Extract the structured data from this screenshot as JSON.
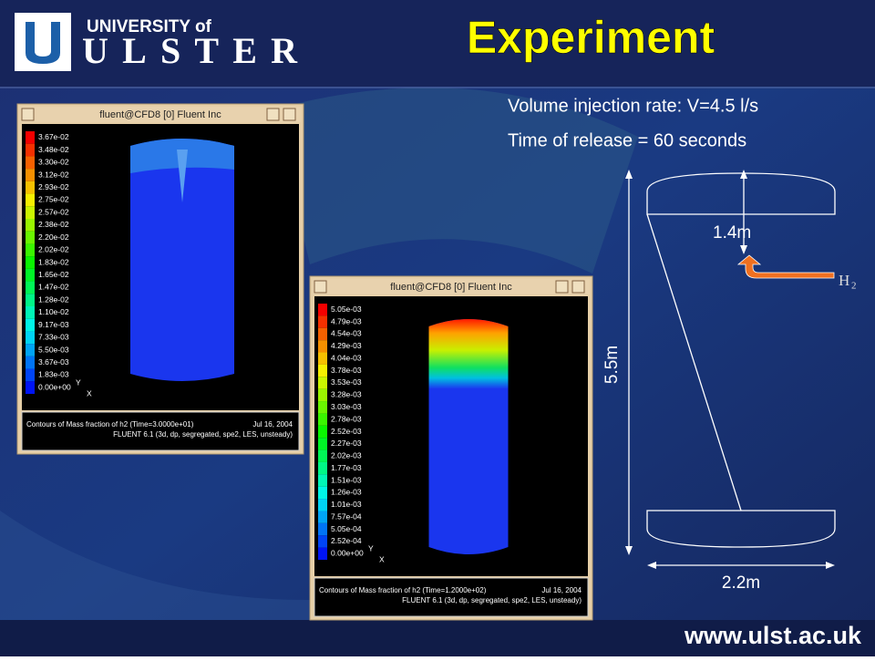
{
  "header": {
    "logo_top": "UNIVERSITY of",
    "logo_main": "ULSTER",
    "title": "Experiment"
  },
  "info": [
    "Volume injection rate: V=4.5 l/s",
    "Time of release = 60 seconds"
  ],
  "windows": [
    {
      "title": "fluent@CFD8 [0] Fluent Inc",
      "legend": [
        "3.67e-02",
        "3.48e-02",
        "3.30e-02",
        "3.12e-02",
        "2.93e-02",
        "2.75e-02",
        "2.57e-02",
        "2.38e-02",
        "2.20e-02",
        "2.02e-02",
        "1.83e-02",
        "1.65e-02",
        "1.47e-02",
        "1.28e-02",
        "1.10e-02",
        "9.17e-03",
        "7.33e-03",
        "5.50e-03",
        "3.67e-03",
        "1.83e-03",
        "0.00e+00"
      ],
      "axes": [
        "Y",
        "X"
      ],
      "caption": [
        "Contours of Mass fraction of h2  (Time=3.0000e+01)",
        "Jul 16, 2004",
        "FLUENT 6.1 (3d, dp, segregated, spe2, LES, unsteady)"
      ]
    },
    {
      "title": "fluent@CFD8 [0] Fluent Inc",
      "legend": [
        "5.05e-03",
        "4.79e-03",
        "4.54e-03",
        "4.29e-03",
        "4.04e-03",
        "3.78e-03",
        "3.53e-03",
        "3.28e-03",
        "3.03e-03",
        "2.78e-03",
        "2.52e-03",
        "2.27e-03",
        "2.02e-03",
        "1.77e-03",
        "1.51e-03",
        "1.26e-03",
        "1.01e-03",
        "7.57e-04",
        "5.05e-04",
        "2.52e-04",
        "0.00e+00"
      ],
      "axes": [
        "Y",
        "X"
      ],
      "caption": [
        "Contours of Mass fraction of h2  (Time=1.2000e+02)",
        "Jul 16, 2004",
        "FLUENT 6.1 (3d, dp, segregated, spe2, LES, unsteady)"
      ]
    }
  ],
  "diagram": {
    "top_distance": "1.4m",
    "gas": "H",
    "gas_subscript": "2",
    "height": "5.5m",
    "diameter": "2.2m"
  },
  "footer": {
    "url": "www.ulst.ac.uk"
  }
}
